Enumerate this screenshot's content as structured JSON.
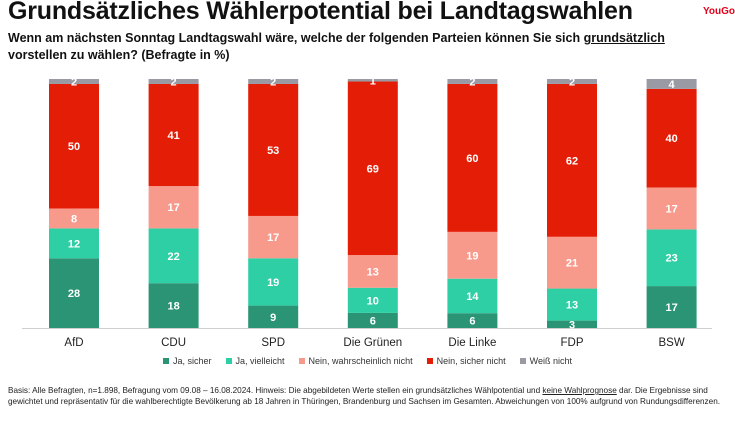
{
  "header": {
    "title": "Grundsätzliches Wählerpotential bei Landtagswahlen",
    "brand": "YouGo",
    "question_pre": "Wenn am nächsten Sonntag Landtagswahl wäre, welche der folgenden Parteien können Sie sich ",
    "question_underlined": "grundsätzlich",
    "question_post": " vorstellen zu wählen? (Befragte in %)"
  },
  "footnote": {
    "pre": "Basis: Alle Befragten, n=1.898, Befragung vom 09.08 – 16.08.2024. Hinweis: Die abgebildeten Werte stellen ein grundsätzliches Wählpotential und ",
    "underlined": "keine Wahlprognose",
    "post": " dar. Die Ergebnisse sind gewichtet und repräsentativ für die wahlberechtigte Bevölkerung ab 18 Jahren in Thüringen, Brandenburg und Sachsen im Gesamten. Abweichungen von 100% aufgrund von Rundungsdifferenzen."
  },
  "chart_data": {
    "type": "bar",
    "stacked": true,
    "categories": [
      "AfD",
      "CDU",
      "SPD",
      "Die Grünen",
      "Die Linke",
      "FDP",
      "BSW"
    ],
    "series": [
      {
        "name": "Ja, sicher",
        "color": "#2b9474",
        "values": [
          28,
          18,
          9,
          6,
          6,
          3,
          17
        ]
      },
      {
        "name": "Ja, vielleicht",
        "color": "#2fcfa5",
        "values": [
          12,
          22,
          19,
          10,
          14,
          13,
          23
        ]
      },
      {
        "name": "Nein, wahrscheinlich nicht",
        "color": "#f79a8c",
        "values": [
          8,
          17,
          17,
          13,
          19,
          21,
          17
        ]
      },
      {
        "name": "Nein, sicher nicht",
        "color": "#e41d06",
        "values": [
          50,
          41,
          53,
          69,
          60,
          62,
          40
        ]
      },
      {
        "name": "Weiß nicht",
        "color": "#9a9aa5",
        "values": [
          2,
          2,
          2,
          1,
          2,
          2,
          4
        ]
      }
    ],
    "ylim": [
      0,
      100
    ],
    "legend_position": "bottom"
  }
}
